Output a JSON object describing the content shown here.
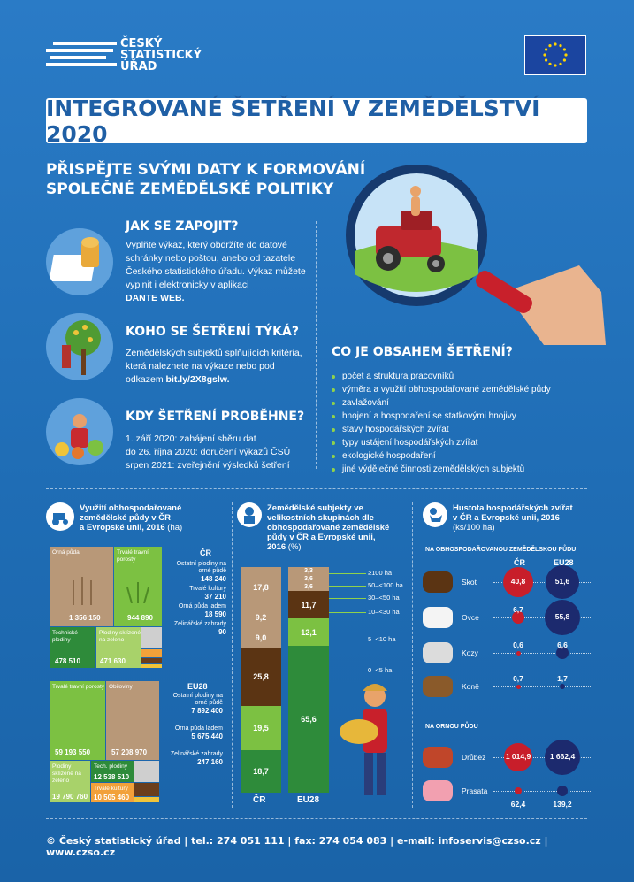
{
  "header": {
    "logo_lines": [
      "ČESKÝ",
      "STATISTICKÝ",
      "ÚŘAD"
    ],
    "title": "INTEGROVANÉ ŠETŘENÍ V ZEMĚDĚLSTVÍ 2020",
    "subtitle_1": "PŘISPĚJTE SVÝMI DATY K FORMOVÁNÍ",
    "subtitle_2": "SPOLEČNÉ ZEMĚDĚLSKÉ POLITIKY"
  },
  "sections": {
    "jak": {
      "heading": "JAK SE ZAPOJIT?",
      "lines": [
        "Vyplňte výkaz, který obdržíte do datové",
        "schránky  nebo poštou, anebo od tazatele",
        "Českého statistického úřadu. Výkaz můžete",
        "vyplnit i elektronicky v aplikaci"
      ],
      "bold": "DANTE WEB."
    },
    "koho": {
      "heading": "KOHO SE ŠETŘENÍ TÝKÁ?",
      "lines": [
        "Zemědělských subjektů splňujících kritéria,",
        "která naleznete na výkaze nebo pod"
      ],
      "prefix": "odkazem",
      "bold": "bit.ly/2X8gslw."
    },
    "kdy": {
      "heading": "KDY ŠETŘENÍ PROBĚHNE?",
      "lines": [
        "1. září 2020: zahájení sběru dat",
        "do 26. října 2020: doručení výkazů ČSÚ",
        "srpen 2021: zveřejnění výsledků šetření"
      ]
    },
    "obsah": {
      "heading": "CO JE OBSAHEM ŠETŘENÍ?",
      "items": [
        "počet a struktura pracovníků",
        "výměra a využití obhospodařované zemědělské půdy",
        "zavlažování",
        "hnojení a hospodaření se statkovými hnojivy",
        "stavy hospodářských zvířat",
        "typy ustájení hospodářských zvířat",
        "ekologické hospodaření",
        "jiné výdělečné činnosti zemědělských subjektů"
      ]
    }
  },
  "panel1": {
    "title_lines": [
      "Využití obhospodařované",
      "zemědělské půdy v ČR",
      "a Evropské unii, 2016"
    ],
    "unit": "(ha)",
    "cr": {
      "label": "ČR",
      "tiles": {
        "orna": {
          "label": "Orná půda",
          "value": "1 356 150"
        },
        "ttp": {
          "label": "Trvalé travní porosty",
          "value": "944 890"
        },
        "tech": {
          "label": "Technické plodiny",
          "value": "478 510"
        },
        "pz": {
          "label": "Plodiny sklízené na zeleno",
          "value": "471 630"
        }
      },
      "side": [
        {
          "label": "Ostatní plodiny na orné půdě",
          "value": "148 240"
        },
        {
          "label": "Trvalé kultury",
          "value": "37 210"
        },
        {
          "label": "Orná půda ladem",
          "value": "18 590"
        },
        {
          "label": "Zelinářské zahrady",
          "value": "90"
        }
      ]
    },
    "eu": {
      "label": "EU28",
      "tiles": {
        "ttp": {
          "label": "Trvalé travní porosty",
          "value": "59 193 550"
        },
        "orna": {
          "label": "Obiloviny",
          "value": "57 208 970"
        },
        "pz": {
          "label": "Plodiny sklízené na zeleno",
          "value": "19 790 760"
        },
        "tech": {
          "label": "Tech. plodiny",
          "value": "12 538 510"
        },
        "tk": {
          "label": "Trvalé kultury",
          "value": "10 505 460"
        }
      },
      "side": [
        {
          "label": "Ostatní plodiny na orné půdě",
          "value": "7 892 400"
        },
        {
          "label": "Orná půda ladem",
          "value": "5 675 440"
        },
        {
          "label": "Zelinářské zahrady",
          "value": "247 160"
        }
      ]
    }
  },
  "panel2": {
    "title_lines": [
      "Zemědělské subjekty ve",
      "velikostních skupinách dle",
      "obhospodařované zemědělské",
      "půdy v ČR a Evropské unii,",
      "2016"
    ],
    "unit": "(%)",
    "chart_data": {
      "type": "bar",
      "categories": [
        "ČR",
        "EU28"
      ],
      "series": [
        {
          "name": "0–<5 ha",
          "values": [
            18.7,
            65.6
          ]
        },
        {
          "name": "5–<10 ha",
          "values": [
            19.5,
            12.1
          ]
        },
        {
          "name": "10–<30 ha",
          "values": [
            25.8,
            11.7
          ]
        },
        {
          "name": "30–<50 ha",
          "values": [
            9.0,
            3.6
          ]
        },
        {
          "name": "50–<100 ha",
          "values": [
            9.2,
            3.6
          ]
        },
        {
          "name": "≥100 ha",
          "values": [
            17.8,
            3.3
          ]
        }
      ]
    },
    "legend": [
      "≥100 ha",
      "50–<100 ha",
      "30–<50 ha",
      "10–<30 ha",
      "5–<10 ha",
      "0–<5 ha"
    ],
    "cr_labels": [
      "17,8",
      "9,2",
      "9,0",
      "25,8",
      "19,5",
      "18,7"
    ],
    "eu_labels": [
      "3,3",
      "3,6",
      "3,6",
      "11,7",
      "12,1",
      "65,6"
    ],
    "cat_labels": [
      "ČR",
      "EU28"
    ]
  },
  "panel3": {
    "title_lines": [
      "Hustota hospodářských zvířat",
      "v ČR a Evropské unii, 2016"
    ],
    "unit": "(ks/100 ha)",
    "sub1": "NA OBHOSPODAŘOVANOU ZEMĚDĚLSKOU PŮDU",
    "sub2": "NA ORNOU PŮDU",
    "col_cr": "ČR",
    "col_eu": "EU28",
    "chart_data": {
      "type": "table",
      "groups": [
        {
          "name": "NA OBHOSPODAŘOVANOU ZEMĚDĚLSKOU PŮDU",
          "rows": [
            {
              "animal": "Skot",
              "cr": 40.8,
              "eu": 51.6
            },
            {
              "animal": "Ovce",
              "cr": 6.7,
              "eu": 55.8
            },
            {
              "animal": "Kozy",
              "cr": 0.6,
              "eu": 6.6
            },
            {
              "animal": "Koně",
              "cr": 0.7,
              "eu": 1.7
            }
          ]
        },
        {
          "name": "NA ORNOU PŮDU",
          "rows": [
            {
              "animal": "Drůbež",
              "cr": 1014.9,
              "eu": 1662.4
            },
            {
              "animal": "Prasata",
              "cr": 62.4,
              "eu": 139.2
            }
          ]
        }
      ]
    },
    "rows": [
      {
        "animal": "Skot",
        "cr": "40,8",
        "eu": "51,6"
      },
      {
        "animal": "Ovce",
        "cr": "6,7",
        "eu": "55,8"
      },
      {
        "animal": "Kozy",
        "cr": "0,6",
        "eu": "6,6"
      },
      {
        "animal": "Koně",
        "cr": "0,7",
        "eu": "1,7"
      },
      {
        "animal": "Drůbež",
        "cr": "1 014,9",
        "eu": "1 662,4"
      },
      {
        "animal": "Prasata",
        "cr": "62,4",
        "eu": "139,2"
      }
    ]
  },
  "footer": {
    "text": "© Český statistický úřad  |  tel.: 274 051 111  |  fax: 274 054 083  |  e-mail: infoservis@czso.cz  |  www.czso.cz"
  },
  "colors": {
    "accent_green": "#8fd24b",
    "dark_green": "#2e8b3a",
    "mid_green": "#6fb43c",
    "brown_dark": "#5b3413",
    "brown_light": "#b18a6a",
    "red": "#c81e2a",
    "navy": "#1c2a6e"
  }
}
